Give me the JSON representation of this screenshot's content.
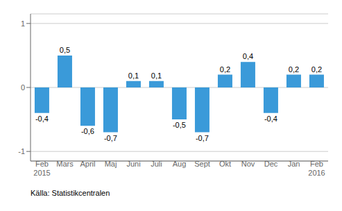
{
  "chart_data": {
    "type": "bar",
    "categories": [
      "Feb\n2015",
      "Mars",
      "April",
      "Maj",
      "Juni",
      "Juli",
      "Aug",
      "Sept",
      "Okt",
      "Nov",
      "Dec",
      "Jan",
      "Feb\n2016"
    ],
    "values": [
      -0.4,
      0.5,
      -0.6,
      -0.7,
      0.1,
      0.1,
      -0.5,
      -0.7,
      0.2,
      0.4,
      -0.4,
      0.2,
      0.2
    ],
    "value_labels": [
      "-0,4",
      "0,5",
      "-0,6",
      "-0,7",
      "0,1",
      "0,1",
      "-0,5",
      "-0,7",
      "0,2",
      "0,4",
      "-0,4",
      "0,2",
      "0,2"
    ],
    "color": "#3a9ad9",
    "ylim": [
      -1.15,
      1.15
    ],
    "yticks": [
      -1,
      0,
      1
    ],
    "grid": true,
    "data_labels": true,
    "annotations": [
      "Källa: Statistikcentralen"
    ]
  }
}
